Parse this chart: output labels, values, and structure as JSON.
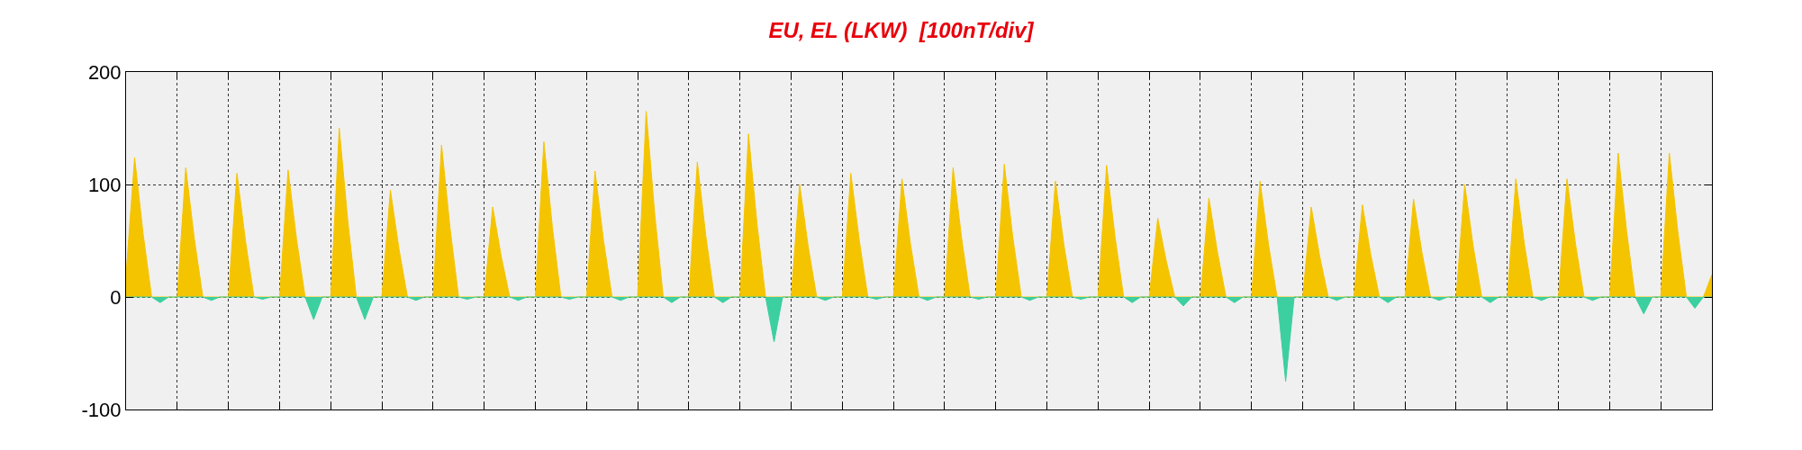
{
  "chart_data": {
    "type": "area",
    "title": "EU, EL (LKW)  [100nT/div]",
    "categories": [
      null,
      null,
      null,
      null,
      null,
      null,
      null,
      null,
      null,
      null,
      null,
      null,
      null,
      null,
      null,
      null,
      null,
      null,
      null,
      null,
      null,
      null,
      null,
      null,
      null,
      null,
      null,
      null,
      null,
      null,
      null,
      null,
      null,
      null,
      null,
      null,
      null,
      null,
      null,
      null,
      null,
      null,
      null,
      null,
      null,
      null,
      null,
      null,
      null,
      null,
      null,
      null,
      null,
      null,
      null,
      null,
      null,
      null,
      null,
      null,
      null,
      null,
      null,
      null,
      null,
      null,
      null,
      null,
      null,
      null,
      null,
      null,
      null,
      null,
      null,
      null,
      null,
      null,
      null,
      null,
      null,
      null,
      null,
      null,
      null,
      null,
      null,
      null,
      null,
      null,
      null,
      null,
      null,
      null,
      null,
      null,
      null,
      null,
      null,
      null,
      null,
      null,
      null,
      null,
      null,
      null,
      null,
      null,
      null,
      null,
      null,
      null,
      null,
      null,
      null,
      null,
      null,
      null,
      null,
      null,
      null,
      null,
      null,
      null,
      null,
      null,
      null,
      null,
      null,
      null,
      null,
      null,
      null,
      null,
      null,
      null,
      null,
      null,
      null,
      null,
      null,
      null,
      null,
      null,
      null,
      null,
      null,
      null,
      null,
      null,
      null,
      null,
      null,
      null,
      null,
      null,
      null,
      null,
      null,
      null,
      null,
      null,
      null,
      null,
      null,
      null,
      null,
      null,
      null,
      null,
      null,
      null,
      null,
      null,
      null,
      null,
      null,
      null,
      null,
      null,
      null,
      null,
      null,
      null,
      null,
      null,
      null
    ],
    "series": [
      {
        "color": "#f5c400",
        "values": [
          20,
          124,
          56,
          0,
          0,
          0,
          0,
          115,
          52,
          0,
          0,
          0,
          0,
          110,
          50,
          0,
          0,
          0,
          0,
          113,
          51,
          0,
          0,
          0,
          0,
          150,
          68,
          0,
          0,
          0,
          0,
          95,
          43,
          0,
          0,
          0,
          0,
          135,
          61,
          0,
          0,
          0,
          0,
          80,
          36,
          0,
          0,
          0,
          0,
          138,
          62,
          0,
          0,
          0,
          0,
          112,
          50,
          0,
          0,
          0,
          0,
          165,
          74,
          0,
          0,
          0,
          0,
          120,
          54,
          0,
          0,
          0,
          0,
          145,
          65,
          0,
          0,
          0,
          0,
          100,
          45,
          0,
          0,
          0,
          0,
          110,
          50,
          0,
          0,
          0,
          0,
          105,
          47,
          0,
          0,
          0,
          0,
          115,
          52,
          0,
          0,
          0,
          0,
          118,
          53,
          0,
          0,
          0,
          0,
          103,
          46,
          0,
          0,
          0,
          0,
          117,
          53,
          0,
          0,
          0,
          0,
          70,
          32,
          0,
          0,
          0,
          0,
          88,
          40,
          0,
          0,
          0,
          0,
          103,
          46,
          0,
          0,
          0,
          0,
          80,
          36,
          0,
          0,
          0,
          0,
          82,
          37,
          0,
          0,
          0,
          0,
          87,
          39,
          0,
          0,
          0,
          0,
          100,
          45,
          0,
          0,
          0,
          0,
          105,
          47,
          0,
          0,
          0,
          0,
          105,
          47,
          0,
          0,
          0,
          0,
          128,
          58,
          0,
          0,
          0,
          0,
          128,
          58,
          0,
          0,
          0,
          20
        ]
      },
      {
        "color": "#3ccfa0",
        "values": [
          0,
          0,
          0,
          0,
          -5,
          0,
          0,
          0,
          0,
          0,
          -3,
          0,
          0,
          0,
          0,
          0,
          -2,
          0,
          0,
          0,
          0,
          0,
          -20,
          0,
          0,
          0,
          0,
          0,
          -20,
          0,
          0,
          0,
          0,
          0,
          -3,
          0,
          0,
          0,
          0,
          0,
          -2,
          0,
          0,
          0,
          0,
          0,
          -3,
          0,
          0,
          0,
          0,
          0,
          -2,
          0,
          0,
          0,
          0,
          0,
          -3,
          0,
          0,
          0,
          0,
          0,
          -5,
          0,
          0,
          0,
          0,
          0,
          -5,
          0,
          0,
          0,
          0,
          0,
          -40,
          0,
          0,
          0,
          0,
          0,
          -3,
          0,
          0,
          0,
          0,
          0,
          -2,
          0,
          0,
          0,
          0,
          0,
          -3,
          0,
          0,
          0,
          0,
          0,
          -2,
          0,
          0,
          0,
          0,
          0,
          -3,
          0,
          0,
          0,
          0,
          0,
          -2,
          0,
          0,
          0,
          0,
          0,
          -5,
          0,
          0,
          0,
          0,
          0,
          -8,
          0,
          0,
          0,
          0,
          0,
          -5,
          0,
          0,
          0,
          0,
          0,
          -75,
          0,
          0,
          0,
          0,
          0,
          -3,
          0,
          0,
          0,
          0,
          0,
          -5,
          0,
          0,
          0,
          0,
          0,
          -3,
          0,
          0,
          0,
          0,
          0,
          -5,
          0,
          0,
          0,
          0,
          0,
          -3,
          0,
          0,
          0,
          0,
          0,
          -3,
          0,
          0,
          0,
          0,
          0,
          -15,
          0,
          0,
          0,
          0,
          0,
          -10,
          0,
          0
        ]
      }
    ],
    "ylim": [
      -100,
      200
    ],
    "yticks": [
      -100,
      0,
      100,
      200
    ],
    "grid": true,
    "tick_labels": "y"
  }
}
